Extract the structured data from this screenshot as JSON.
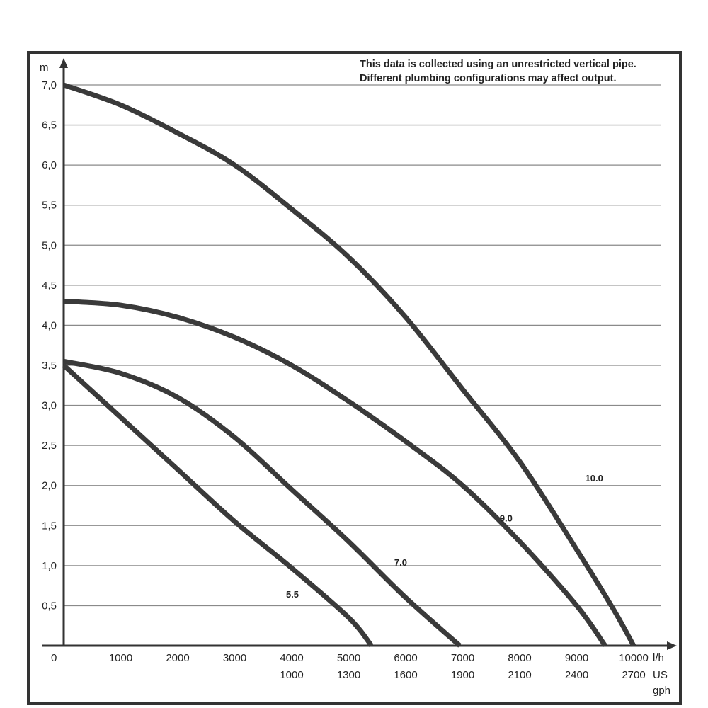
{
  "chart_data": {
    "type": "line",
    "note_lines": [
      "This data is collected using an unrestricted vertical pipe.",
      "Different plumbing configurations may affect output."
    ],
    "y_unit": "m",
    "x_unit": "l/h",
    "x2_unit": [
      "US",
      "gph"
    ],
    "origin_label": "0",
    "ylim": [
      0,
      7
    ],
    "xlim": [
      0,
      10000
    ],
    "y_ticks": [
      {
        "v": 0.5,
        "label": "0,5"
      },
      {
        "v": 1.0,
        "label": "1,0"
      },
      {
        "v": 1.5,
        "label": "1,5"
      },
      {
        "v": 2.0,
        "label": "2,0"
      },
      {
        "v": 2.5,
        "label": "2,5"
      },
      {
        "v": 3.0,
        "label": "3,0"
      },
      {
        "v": 3.5,
        "label": "3,5"
      },
      {
        "v": 4.0,
        "label": "4,0"
      },
      {
        "v": 4.5,
        "label": "4,5"
      },
      {
        "v": 5.0,
        "label": "5,0"
      },
      {
        "v": 5.5,
        "label": "5,5"
      },
      {
        "v": 6.0,
        "label": "6,0"
      },
      {
        "v": 6.5,
        "label": "6,5"
      },
      {
        "v": 7.0,
        "label": "7,0"
      }
    ],
    "x_ticks": [
      {
        "v": 1000,
        "label": "1000"
      },
      {
        "v": 2000,
        "label": "2000"
      },
      {
        "v": 3000,
        "label": "3000"
      },
      {
        "v": 4000,
        "label": "4000"
      },
      {
        "v": 5000,
        "label": "5000"
      },
      {
        "v": 6000,
        "label": "6000"
      },
      {
        "v": 7000,
        "label": "7000"
      },
      {
        "v": 8000,
        "label": "8000"
      },
      {
        "v": 9000,
        "label": "9000"
      },
      {
        "v": 10000,
        "label": "10000"
      }
    ],
    "x2_ticks": [
      {
        "v": 4000,
        "label": "1000"
      },
      {
        "v": 5000,
        "label": "1300"
      },
      {
        "v": 6000,
        "label": "1600"
      },
      {
        "v": 7000,
        "label": "1900"
      },
      {
        "v": 8000,
        "label": "2100"
      },
      {
        "v": 9000,
        "label": "2400"
      },
      {
        "v": 10000,
        "label": "2700"
      }
    ],
    "grid": true,
    "series": [
      {
        "name": "5.5",
        "label_at": [
          3900,
          0.6
        ],
        "points": [
          [
            0,
            3.5
          ],
          [
            1000,
            2.85
          ],
          [
            2000,
            2.2
          ],
          [
            3000,
            1.55
          ],
          [
            4000,
            0.97
          ],
          [
            5000,
            0.35
          ],
          [
            5400,
            0.0
          ]
        ]
      },
      {
        "name": "7.0",
        "label_at": [
          5800,
          1.0
        ],
        "points": [
          [
            0,
            3.55
          ],
          [
            1000,
            3.4
          ],
          [
            2000,
            3.1
          ],
          [
            3000,
            2.6
          ],
          [
            4000,
            1.95
          ],
          [
            5000,
            1.3
          ],
          [
            6000,
            0.6
          ],
          [
            6950,
            0.0
          ]
        ]
      },
      {
        "name": "9.0",
        "label_at": [
          7650,
          1.55
        ],
        "points": [
          [
            0,
            4.3
          ],
          [
            1000,
            4.25
          ],
          [
            2000,
            4.1
          ],
          [
            3000,
            3.85
          ],
          [
            4000,
            3.5
          ],
          [
            5000,
            3.05
          ],
          [
            6000,
            2.55
          ],
          [
            7000,
            2.0
          ],
          [
            8000,
            1.3
          ],
          [
            9000,
            0.5
          ],
          [
            9500,
            0.0
          ]
        ]
      },
      {
        "name": "10.0",
        "label_at": [
          9150,
          2.05
        ],
        "points": [
          [
            0,
            7.0
          ],
          [
            1000,
            6.75
          ],
          [
            2000,
            6.4
          ],
          [
            3000,
            6.0
          ],
          [
            4000,
            5.45
          ],
          [
            5000,
            4.85
          ],
          [
            6000,
            4.1
          ],
          [
            7000,
            3.2
          ],
          [
            8000,
            2.3
          ],
          [
            9000,
            1.2
          ],
          [
            9650,
            0.45
          ],
          [
            10000,
            0.0
          ]
        ]
      }
    ]
  }
}
